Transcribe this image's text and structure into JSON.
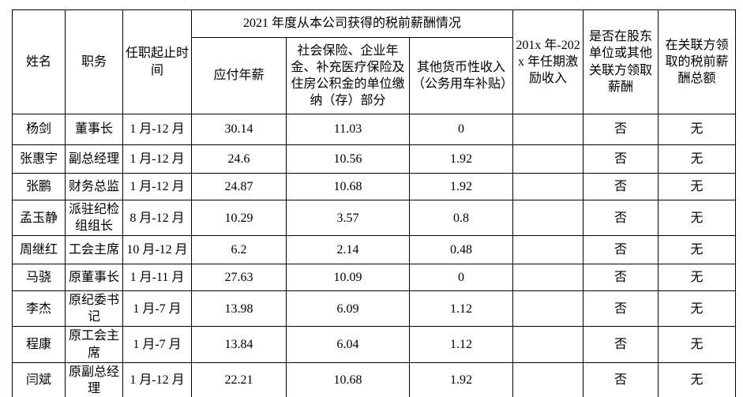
{
  "colors": {
    "background": "#ffffff",
    "border": "#000000",
    "text": "#000000"
  },
  "table": {
    "headers": {
      "name": "姓名",
      "position": "职务",
      "term": "任职起止时间",
      "comp_group": "2021 年度从本公司获得的税前薪酬情况",
      "annual_salary": "应付年薪",
      "social_insurance": "社会保险、企业年金、补充医疗保险及住房公积金的单位缴纳（存）部分",
      "other_income": "其他货币性收入（公务用车补贴）",
      "incentive": "201x 年-202x 年任期激励收入",
      "related_party": "是否在股东单位或其他关联方领取薪酬",
      "related_total": "在关联方领取的税前薪酬总额"
    },
    "rows": [
      {
        "name": "杨剑",
        "position": "董事长",
        "term": "1 月-12 月",
        "annual_salary": "30.14",
        "social_insurance": "11.03",
        "other_income": "0",
        "incentive": "",
        "related_party": "否",
        "related_total": "无"
      },
      {
        "name": "张惠宇",
        "position": "副总经理",
        "term": "1 月-12 月",
        "annual_salary": "24.6",
        "social_insurance": "10.56",
        "other_income": "1.92",
        "incentive": "",
        "related_party": "否",
        "related_total": "无"
      },
      {
        "name": "张鹏",
        "position": "财务总监",
        "term": "1 月-12 月",
        "annual_salary": "24.87",
        "social_insurance": "10.68",
        "other_income": "1.92",
        "incentive": "",
        "related_party": "否",
        "related_total": "无"
      },
      {
        "name": "孟玉静",
        "position": "派驻纪检组组长",
        "term": "8 月-12 月",
        "annual_salary": "10.29",
        "social_insurance": "3.57",
        "other_income": "0.8",
        "incentive": "",
        "related_party": "否",
        "related_total": "无"
      },
      {
        "name": "周继红",
        "position": "工会主席",
        "term": "10 月-12 月",
        "annual_salary": "6.2",
        "social_insurance": "2.14",
        "other_income": "0.48",
        "incentive": "",
        "related_party": "否",
        "related_total": "无"
      },
      {
        "name": "马骁",
        "position": "原董事长",
        "term": "1 月-11 月",
        "annual_salary": "27.63",
        "social_insurance": "10.09",
        "other_income": "0",
        "incentive": "",
        "related_party": "否",
        "related_total": "无"
      },
      {
        "name": "李杰",
        "position": "原纪委书记",
        "term": "1 月-7 月",
        "annual_salary": "13.98",
        "social_insurance": "6.09",
        "other_income": "1.12",
        "incentive": "",
        "related_party": "否",
        "related_total": "无"
      },
      {
        "name": "程康",
        "position": "原工会主席",
        "term": "1 月-7 月",
        "annual_salary": "13.84",
        "social_insurance": "6.04",
        "other_income": "1.12",
        "incentive": "",
        "related_party": "否",
        "related_total": "无"
      },
      {
        "name": "闫斌",
        "position": "原副总经理",
        "term": "1 月-12 月",
        "annual_salary": "22.21",
        "social_insurance": "10.68",
        "other_income": "1.92",
        "incentive": "",
        "related_party": "否",
        "related_total": "无"
      }
    ]
  }
}
